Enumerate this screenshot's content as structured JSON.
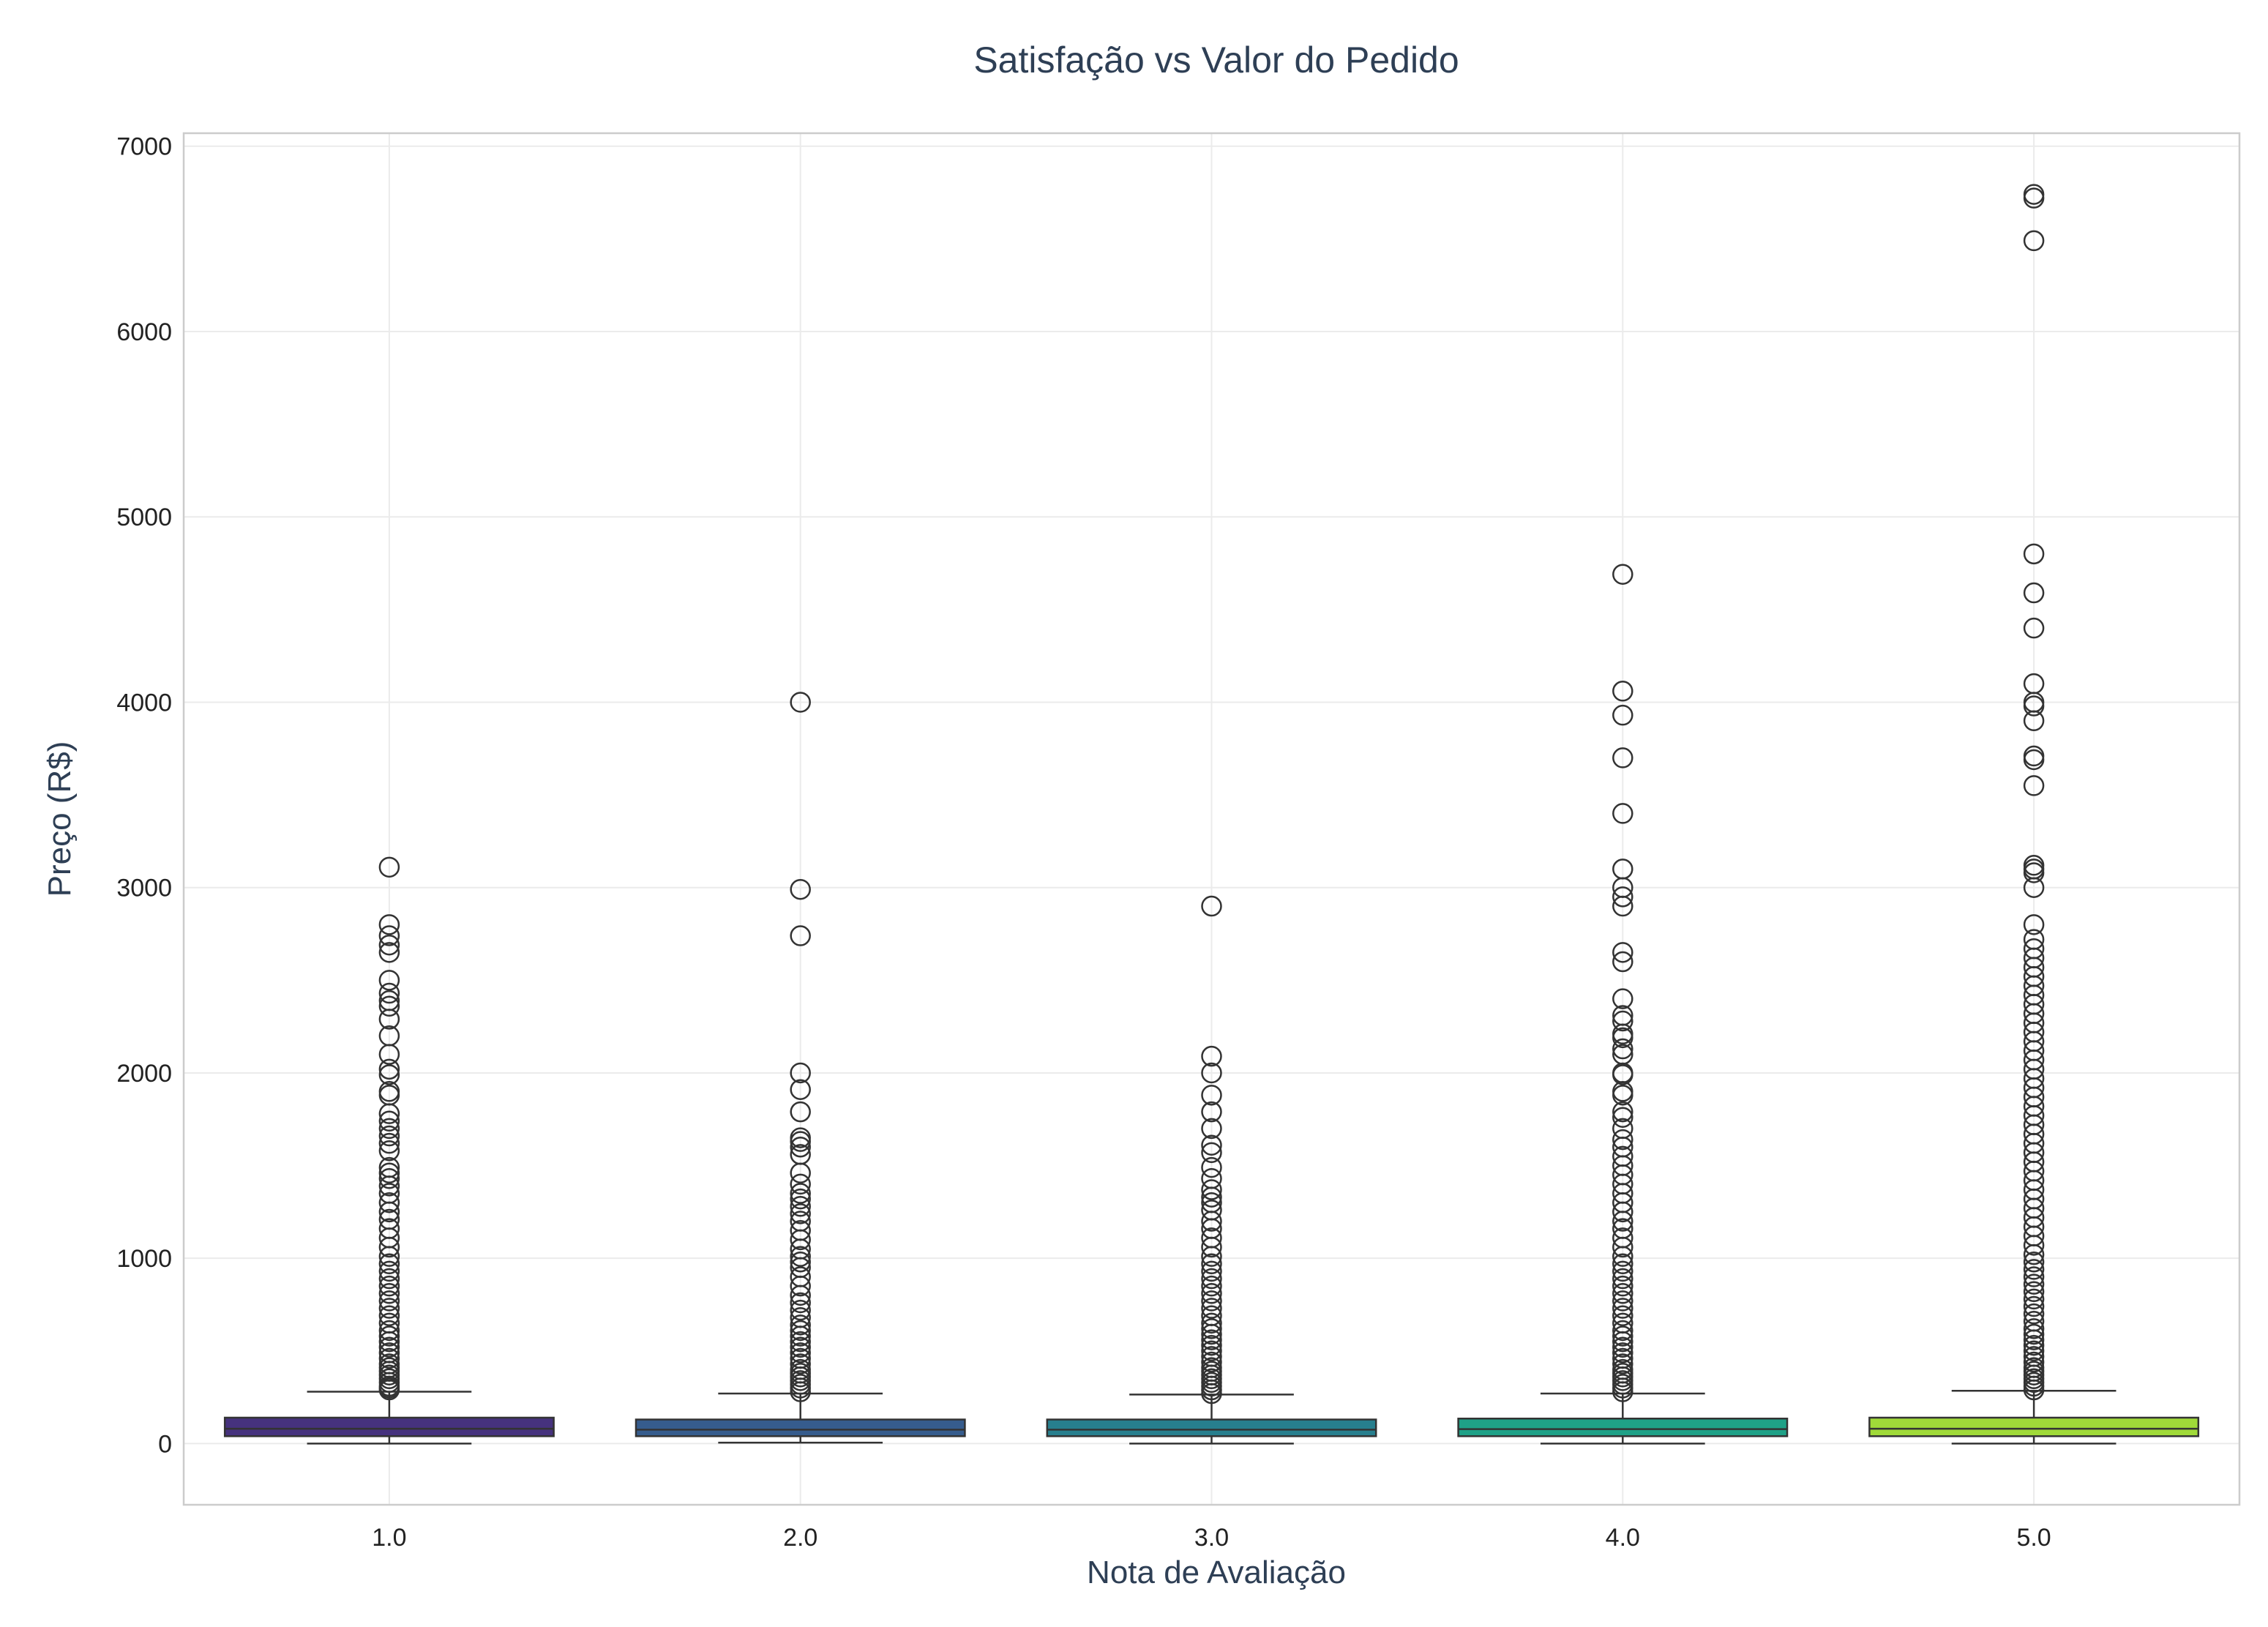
{
  "chart_data": {
    "type": "boxplot",
    "title": "Satisfação vs Valor do Pedido",
    "xlabel": "Nota de Avaliação",
    "ylabel": "Preço (R$)",
    "categories": [
      "1.0",
      "2.0",
      "3.0",
      "4.0",
      "5.0"
    ],
    "y_ticks": [
      "0",
      "1000",
      "2000",
      "3000",
      "4000",
      "5000",
      "6000",
      "7000"
    ],
    "ylim": [
      -330,
      7070
    ],
    "grid": true,
    "legend": "none",
    "boxes": [
      {
        "category": "1.0",
        "color": "#46327e",
        "min": 0,
        "q1": 40,
        "median": 80,
        "q3": 140,
        "whisker_high": 280,
        "outliers": [
          290,
          300,
          310,
          330,
          350,
          370,
          390,
          410,
          430,
          460,
          490,
          520,
          550,
          580,
          610,
          650,
          690,
          730,
          770,
          810,
          850,
          890,
          930,
          970,
          1010,
          1060,
          1110,
          1160,
          1210,
          1250,
          1300,
          1350,
          1390,
          1430,
          1460,
          1490,
          1580,
          1620,
          1660,
          1700,
          1740,
          1780,
          1880,
          1900,
          1990,
          2020,
          2100,
          2200,
          2290,
          2360,
          2390,
          2430,
          2500,
          2650,
          2690,
          2740,
          2800,
          3110
        ]
      },
      {
        "category": "2.0",
        "color": "#365c8d",
        "min": 5,
        "q1": 40,
        "median": 75,
        "q3": 130,
        "whisker_high": 270,
        "outliers": [
          280,
          300,
          320,
          340,
          360,
          380,
          400,
          430,
          460,
          490,
          520,
          550,
          580,
          610,
          640,
          680,
          720,
          760,
          800,
          850,
          900,
          950,
          980,
          1010,
          1050,
          1100,
          1150,
          1200,
          1240,
          1280,
          1320,
          1350,
          1400,
          1460,
          1560,
          1600,
          1630,
          1650,
          1790,
          1910,
          2000,
          2740,
          2990,
          4000
        ]
      },
      {
        "category": "3.0",
        "color": "#277f8e",
        "min": 0,
        "q1": 40,
        "median": 75,
        "q3": 130,
        "whisker_high": 265,
        "outliers": [
          270,
          290,
          310,
          330,
          350,
          370,
          390,
          410,
          440,
          470,
          500,
          530,
          560,
          590,
          620,
          650,
          690,
          730,
          770,
          810,
          850,
          890,
          930,
          970,
          1010,
          1060,
          1110,
          1160,
          1200,
          1260,
          1300,
          1330,
          1370,
          1430,
          1490,
          1570,
          1610,
          1700,
          1790,
          1880,
          2000,
          2090,
          2900
        ]
      },
      {
        "category": "4.0",
        "color": "#1fa187",
        "min": 0,
        "q1": 40,
        "median": 78,
        "q3": 135,
        "whisker_high": 270,
        "outliers": [
          280,
          300,
          320,
          340,
          360,
          380,
          400,
          430,
          460,
          490,
          520,
          550,
          580,
          610,
          650,
          690,
          730,
          770,
          810,
          850,
          890,
          930,
          970,
          1010,
          1060,
          1110,
          1160,
          1200,
          1250,
          1300,
          1350,
          1400,
          1450,
          1500,
          1550,
          1600,
          1640,
          1700,
          1760,
          1790,
          1880,
          1900,
          1990,
          2000,
          2100,
          2130,
          2190,
          2210,
          2280,
          2310,
          2400,
          2600,
          2650,
          2900,
          2950,
          3000,
          3100,
          3400,
          3700,
          3930,
          4060,
          4690
        ]
      },
      {
        "category": "5.0",
        "color": "#a0da39",
        "min": 0,
        "q1": 40,
        "median": 80,
        "q3": 140,
        "whisker_high": 285,
        "outliers": [
          290,
          310,
          330,
          350,
          370,
          390,
          410,
          440,
          470,
          500,
          530,
          560,
          590,
          620,
          660,
          700,
          740,
          780,
          820,
          860,
          900,
          940,
          980,
          1020,
          1070,
          1120,
          1170,
          1220,
          1270,
          1320,
          1370,
          1420,
          1470,
          1520,
          1570,
          1620,
          1670,
          1720,
          1770,
          1820,
          1870,
          1920,
          1970,
          2020,
          2070,
          2120,
          2170,
          2220,
          2270,
          2320,
          2370,
          2420,
          2470,
          2520,
          2570,
          2620,
          2670,
          2720,
          2800,
          3000,
          3080,
          3100,
          3120,
          3550,
          3690,
          3710,
          3900,
          3980,
          4000,
          4100,
          4400,
          4590,
          4800,
          6490,
          6720,
          6740
        ]
      }
    ]
  }
}
